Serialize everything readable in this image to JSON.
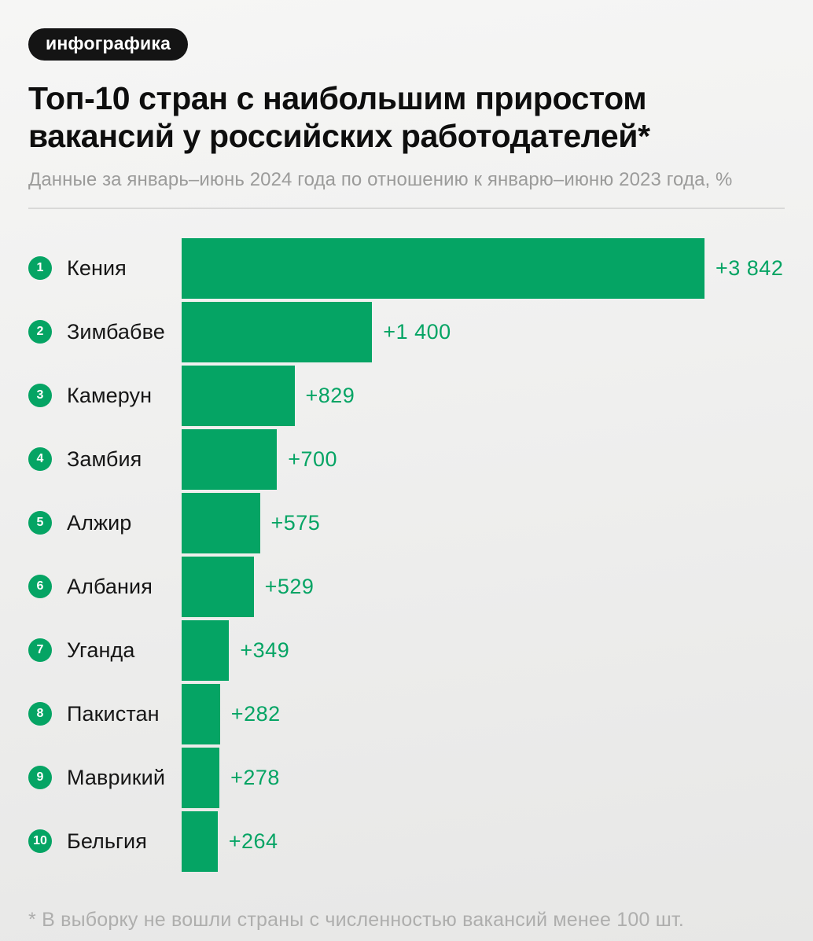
{
  "badge": {
    "label": "инфографика"
  },
  "header": {
    "title": "Топ-10 стран с наибольшим приростом вакансий у российских работодателей*",
    "subtitle": "Данные за январь–июнь 2024 года по отношению к январю–июню 2023 года, %"
  },
  "footnote": "* В выборку не вошли страны с численностью вакансий менее 100 шт.",
  "colors": {
    "bar": "#05a464",
    "value_text": "#05a464",
    "rank_circle": "#05a464",
    "badge_bg": "#141414",
    "badge_text": "#ffffff"
  },
  "chart_data": {
    "type": "bar",
    "orientation": "horizontal",
    "title": "Топ-10 стран с наибольшим приростом вакансий у российских работодателей*",
    "subtitle": "Данные за январь–июнь 2024 года по отношению к январю–июню 2023 года, %",
    "unit": "%",
    "xlim": [
      0,
      3842
    ],
    "grid": false,
    "legend": false,
    "ranks": [
      1,
      2,
      3,
      4,
      5,
      6,
      7,
      8,
      9,
      10
    ],
    "categories": [
      "Кения",
      "Зимбабве",
      "Камерун",
      "Замбия",
      "Алжир",
      "Албания",
      "Уганда",
      "Пакистан",
      "Маврикий",
      "Бельгия"
    ],
    "values": [
      3842,
      1400,
      829,
      700,
      575,
      529,
      349,
      282,
      278,
      264
    ],
    "value_labels": [
      "+3 842",
      "+1 400",
      "+829",
      "+700",
      "+575",
      "+529",
      "+349",
      "+282",
      "+278",
      "+264"
    ],
    "max_value": 3842
  }
}
